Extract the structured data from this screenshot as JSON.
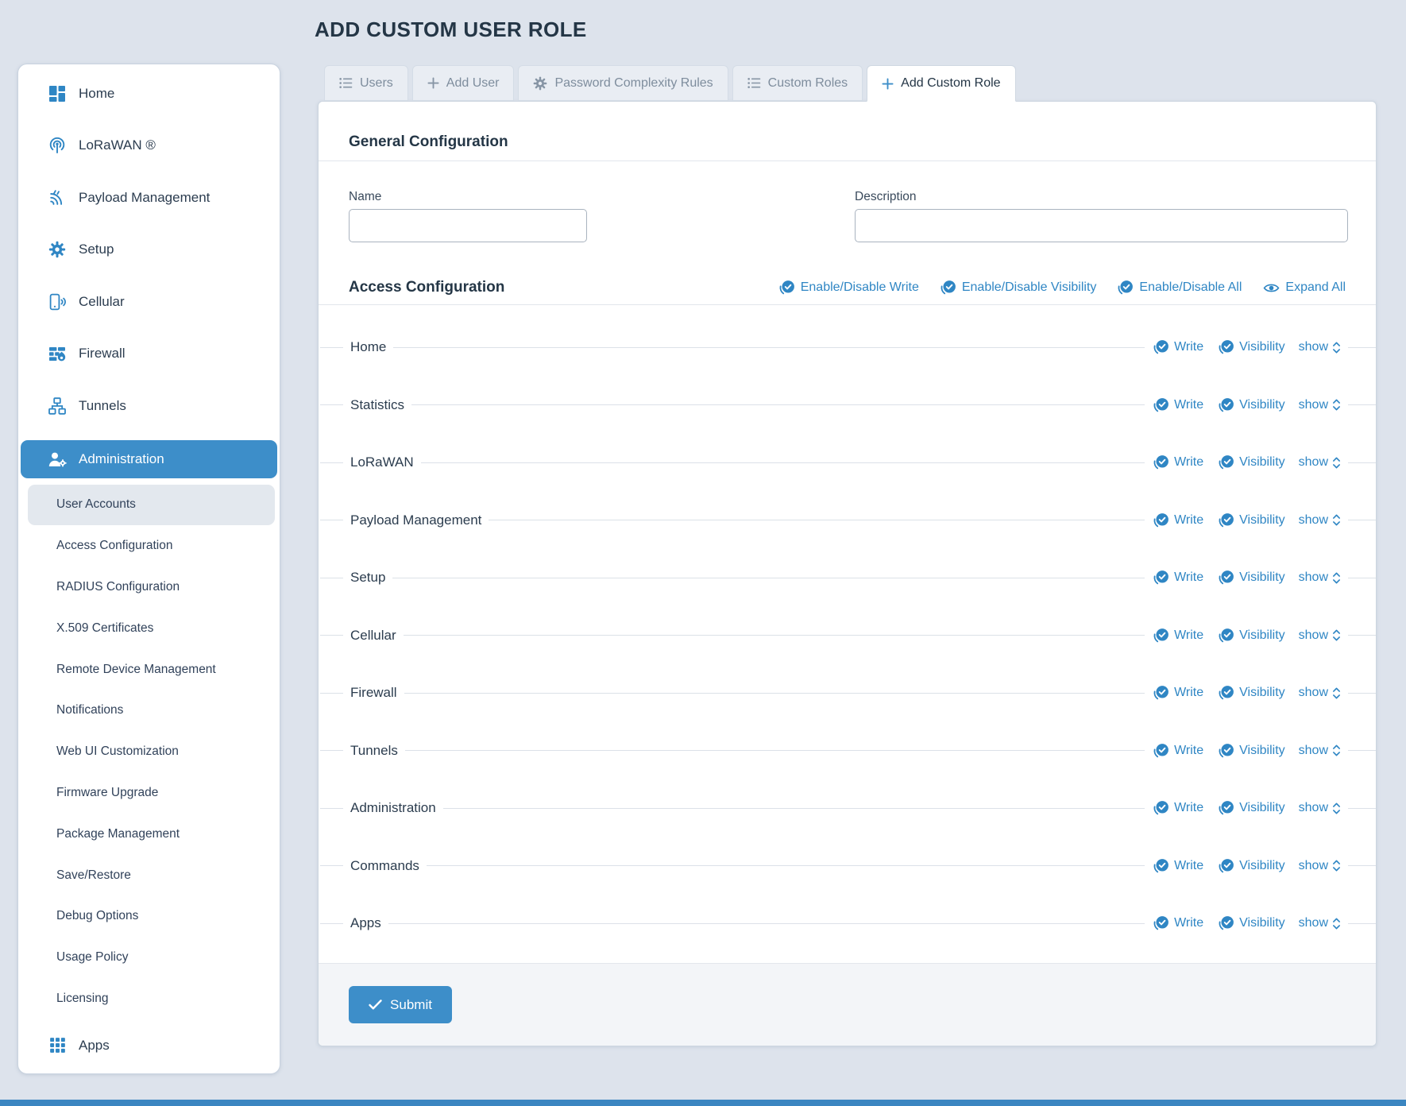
{
  "page": {
    "title": "ADD CUSTOM USER ROLE",
    "accent_color": "#3d8ec9",
    "link_color": "#2f86c4"
  },
  "sidebar": {
    "items": [
      {
        "type": "top",
        "icon": "home-grid-icon",
        "label": "Home"
      },
      {
        "type": "top",
        "icon": "lorawan-icon",
        "label": "LoRaWAN ®"
      },
      {
        "type": "top",
        "icon": "payload-signal-icon",
        "label": "Payload Management"
      },
      {
        "type": "top",
        "icon": "gear-icon",
        "label": "Setup"
      },
      {
        "type": "top",
        "icon": "cellular-icon",
        "label": "Cellular"
      },
      {
        "type": "top",
        "icon": "firewall-icon",
        "label": "Firewall"
      },
      {
        "type": "top",
        "icon": "tunnels-icon",
        "label": "Tunnels"
      },
      {
        "type": "top",
        "icon": "admin-users-icon",
        "label": "Administration",
        "active": true
      },
      {
        "type": "sub",
        "label": "User Accounts",
        "selected": true
      },
      {
        "type": "sub",
        "label": "Access Configuration"
      },
      {
        "type": "sub",
        "label": "RADIUS Configuration"
      },
      {
        "type": "sub",
        "label": "X.509 Certificates"
      },
      {
        "type": "sub",
        "label": "Remote Device Management"
      },
      {
        "type": "sub",
        "label": "Notifications"
      },
      {
        "type": "sub",
        "label": "Web UI Customization"
      },
      {
        "type": "sub",
        "label": "Firmware Upgrade"
      },
      {
        "type": "sub",
        "label": "Package Management"
      },
      {
        "type": "sub",
        "label": "Save/Restore"
      },
      {
        "type": "sub",
        "label": "Debug Options"
      },
      {
        "type": "sub",
        "label": "Usage Policy"
      },
      {
        "type": "sub",
        "label": "Licensing"
      },
      {
        "type": "top",
        "icon": "apps-grid-icon",
        "label": "Apps"
      }
    ]
  },
  "tabs": [
    {
      "label": "Users",
      "icon": "list-icon"
    },
    {
      "label": "Add User",
      "icon": "plus-icon"
    },
    {
      "label": "Password Complexity Rules",
      "icon": "gear-tab-icon"
    },
    {
      "label": "Custom Roles",
      "icon": "list-icon"
    },
    {
      "label": "Add Custom Role",
      "icon": "plus-icon",
      "active": true
    }
  ],
  "general": {
    "heading": "General Configuration",
    "name_label": "Name",
    "name_value": "",
    "description_label": "Description",
    "description_value": ""
  },
  "access": {
    "heading": "Access Configuration",
    "toolbar": [
      {
        "label": "Enable/Disable Write",
        "icon": "check-circle-icon"
      },
      {
        "label": "Enable/Disable Visibility",
        "icon": "check-circle-icon"
      },
      {
        "label": "Enable/Disable All",
        "icon": "check-circle-icon"
      },
      {
        "label": "Expand All",
        "icon": "eye-icon"
      }
    ],
    "rows": [
      "Home",
      "Statistics",
      "LoRaWAN",
      "Payload Management",
      "Setup",
      "Cellular",
      "Firewall",
      "Tunnels",
      "Administration",
      "Commands",
      "Apps"
    ],
    "row_controls": {
      "write": "Write",
      "visibility": "Visibility",
      "show": "show"
    }
  },
  "footer": {
    "submit_label": "Submit"
  }
}
